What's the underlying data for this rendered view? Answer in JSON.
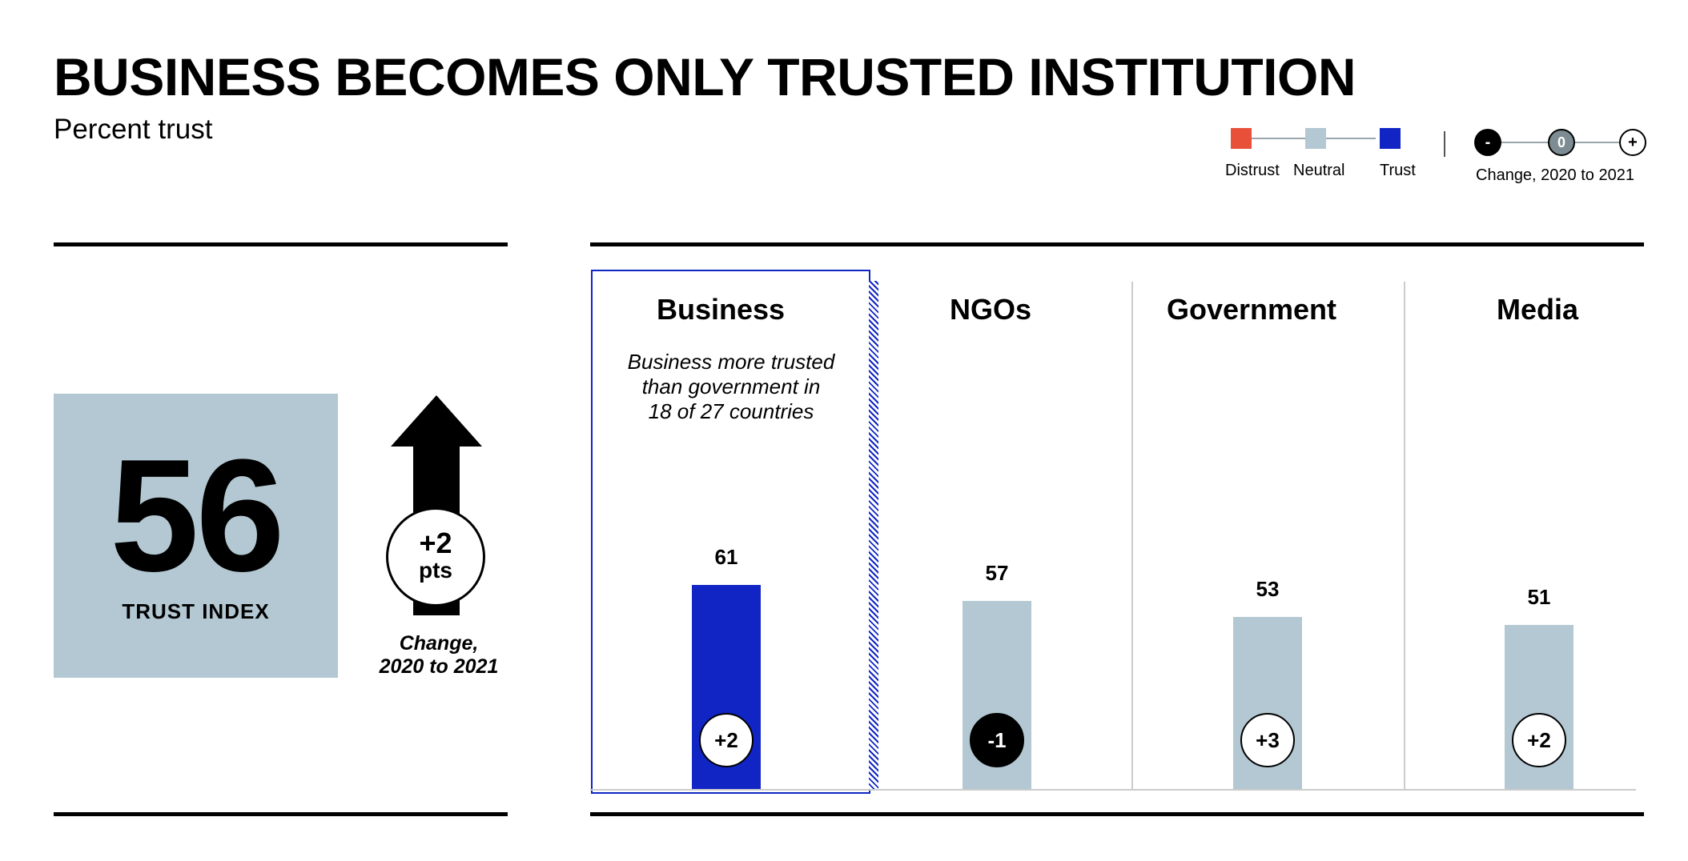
{
  "title": "BUSINESS BECOMES ONLY TRUSTED INSTITUTION",
  "subtitle": "Percent trust",
  "legend": {
    "items": [
      {
        "label": "Distrust",
        "color": "#e8503a"
      },
      {
        "label": "Neutral",
        "color": "#b3c8d2"
      },
      {
        "label": "Trust",
        "color": "#1025c4"
      }
    ],
    "change_markers": [
      "-",
      "0",
      "+"
    ],
    "change_label": "Change, 2020 to 2021"
  },
  "trust_index": {
    "value": "56",
    "label": "TRUST INDEX",
    "change_value": "+2",
    "change_unit": "pts",
    "change_note_line1": "Change,",
    "change_note_line2": "2020 to 2021"
  },
  "business_callout": {
    "line1": "Business more trusted",
    "line2": "than government in",
    "line3": "18 of 27 countries"
  },
  "colors": {
    "trust": "#1025c4",
    "neutral": "#b3c8d2",
    "distrust": "#e8503a",
    "negative_change": "#000000"
  },
  "chart_data": {
    "type": "bar",
    "categories": [
      "Business",
      "NGOs",
      "Government",
      "Media"
    ],
    "values": [
      61,
      57,
      53,
      51
    ],
    "changes": [
      "+2",
      "-1",
      "+3",
      "+2"
    ],
    "bar_categories": [
      "Trust",
      "Neutral",
      "Neutral",
      "Neutral"
    ],
    "ylim": [
      0,
      100
    ],
    "grid": false
  }
}
